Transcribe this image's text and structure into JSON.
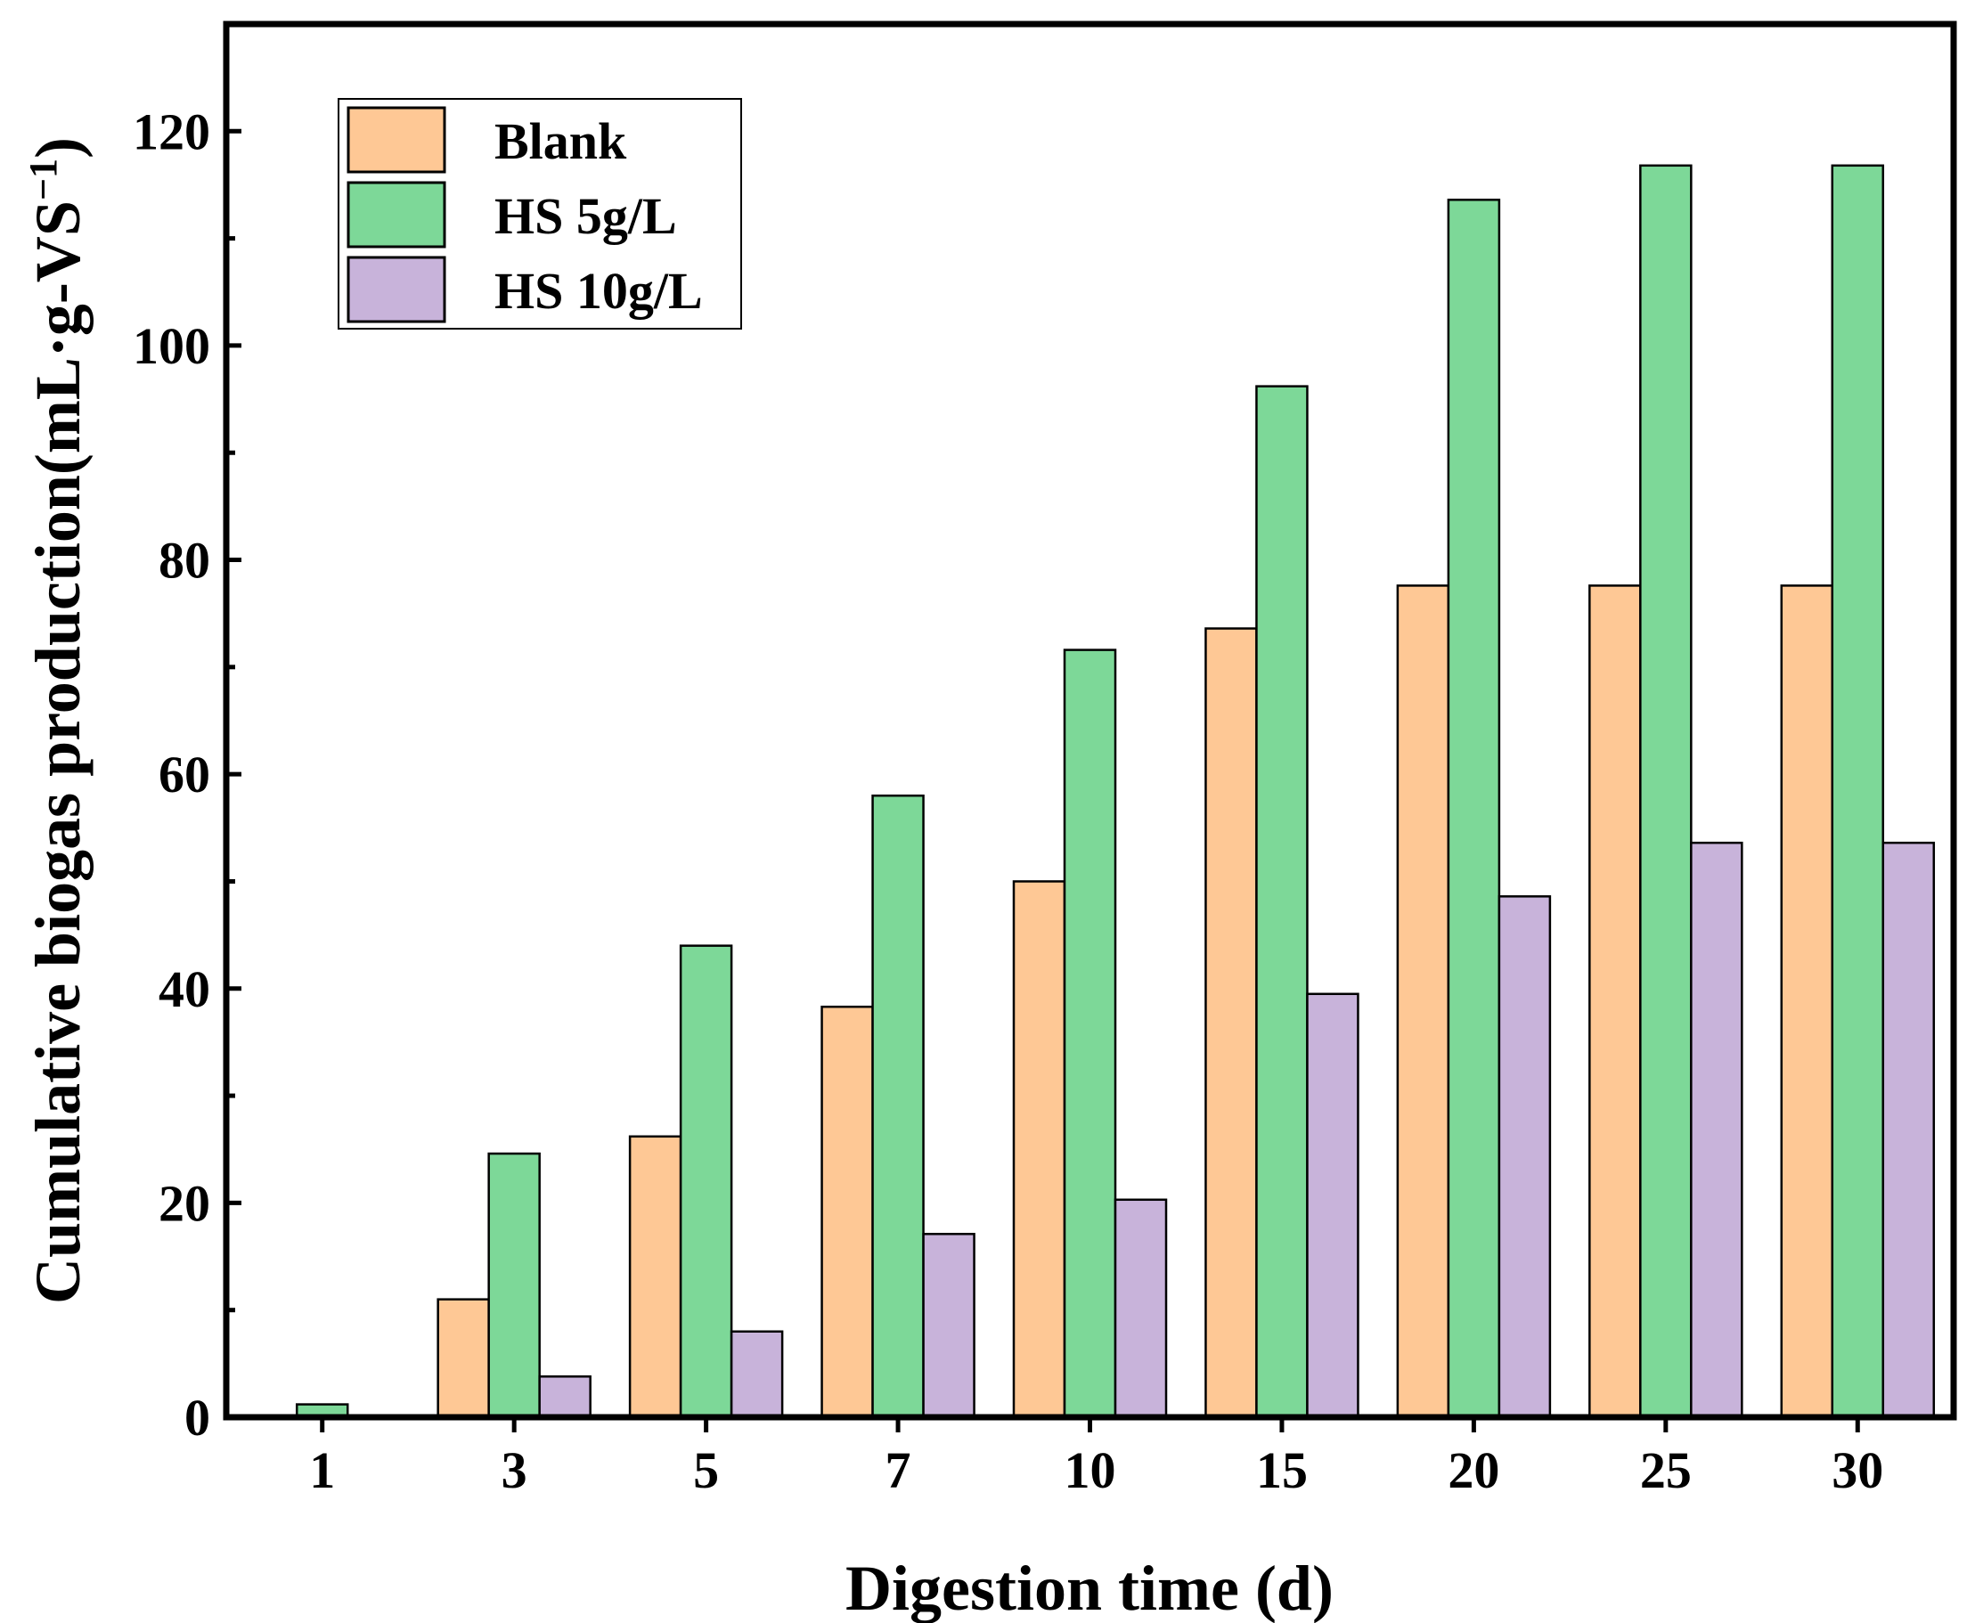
{
  "chart_data": {
    "type": "bar",
    "xlabel": "Digestion time (d)",
    "ylabel": "Cumulative biogas production(mL·g-VS",
    "ylabel_superscript": "−1",
    "ylabel_close": ")",
    "categories": [
      "1",
      "3",
      "5",
      "7",
      "10",
      "15",
      "20",
      "25",
      "30"
    ],
    "ylim": [
      0,
      130
    ],
    "yticks": [
      0,
      20,
      40,
      60,
      80,
      100,
      120
    ],
    "yticks_minor": [
      10,
      30,
      50,
      70,
      90,
      110
    ],
    "grid": false,
    "legend": "top-left",
    "series": [
      {
        "name": "Blank",
        "color": "#FEC895",
        "values": [
          0,
          11,
          26.2,
          38.3,
          50,
          73.6,
          77.6,
          77.6,
          77.6
        ]
      },
      {
        "name": "HS 5g/L",
        "color": "#7DD898",
        "values": [
          1.2,
          24.6,
          44,
          58,
          71.6,
          96.2,
          113.6,
          116.8,
          116.8
        ]
      },
      {
        "name": "HS 10g/L",
        "color": "#C8B3DA",
        "values": [
          0,
          3.8,
          8,
          17.1,
          20.3,
          39.5,
          48.6,
          53.6,
          53.6
        ]
      }
    ]
  }
}
